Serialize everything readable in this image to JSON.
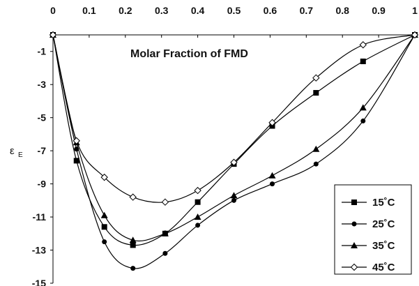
{
  "chart_data": {
    "type": "scatter",
    "title": "Molar Fraction of FMD",
    "xlabel": "",
    "ylabel": "ε",
    "ylabel_sub": "E",
    "xlim": [
      0,
      1
    ],
    "ylim": [
      -15,
      0
    ],
    "x_ticks": [
      "0",
      "0.1",
      "0.2",
      "0.3",
      "0.4",
      "0.5",
      "0.6",
      "0.7",
      "0.8",
      "0.9",
      "1"
    ],
    "y_ticks": [
      "-1",
      "-3",
      "-5",
      "-7",
      "-9",
      "-11",
      "-13",
      "-15"
    ],
    "grid": false,
    "legend_position": "bottom-right",
    "series": [
      {
        "name": "15˚C",
        "marker": "square",
        "x": [
          0,
          0.065,
          0.142,
          0.221,
          0.31,
          0.4,
          0.5,
          0.606,
          0.727,
          0.857,
          1
        ],
        "y": [
          0,
          -7.6,
          -11.6,
          -12.7,
          -12.0,
          -10.1,
          -7.8,
          -5.5,
          -3.5,
          -1.6,
          0
        ]
      },
      {
        "name": "25˚C",
        "marker": "circle",
        "x": [
          0,
          0.065,
          0.142,
          0.221,
          0.31,
          0.4,
          0.5,
          0.606,
          0.727,
          0.857,
          1
        ],
        "y": [
          0,
          -6.9,
          -12.5,
          -14.1,
          -13.2,
          -11.5,
          -10.0,
          -9.0,
          -7.8,
          -5.2,
          0
        ]
      },
      {
        "name": "35˚C",
        "marker": "triangle",
        "x": [
          0,
          0.065,
          0.142,
          0.221,
          0.31,
          0.4,
          0.5,
          0.606,
          0.727,
          0.857,
          1
        ],
        "y": [
          0,
          -6.5,
          -10.9,
          -12.4,
          -12.0,
          -11.0,
          -9.7,
          -8.5,
          -6.9,
          -4.4,
          0
        ]
      },
      {
        "name": "45˚C",
        "marker": "diamond-open",
        "x": [
          0,
          0.065,
          0.142,
          0.221,
          0.31,
          0.4,
          0.5,
          0.606,
          0.727,
          0.857,
          1
        ],
        "y": [
          0,
          -6.4,
          -8.6,
          -9.8,
          -10.1,
          -9.4,
          -7.7,
          -5.3,
          -2.6,
          -0.6,
          0
        ]
      }
    ]
  }
}
